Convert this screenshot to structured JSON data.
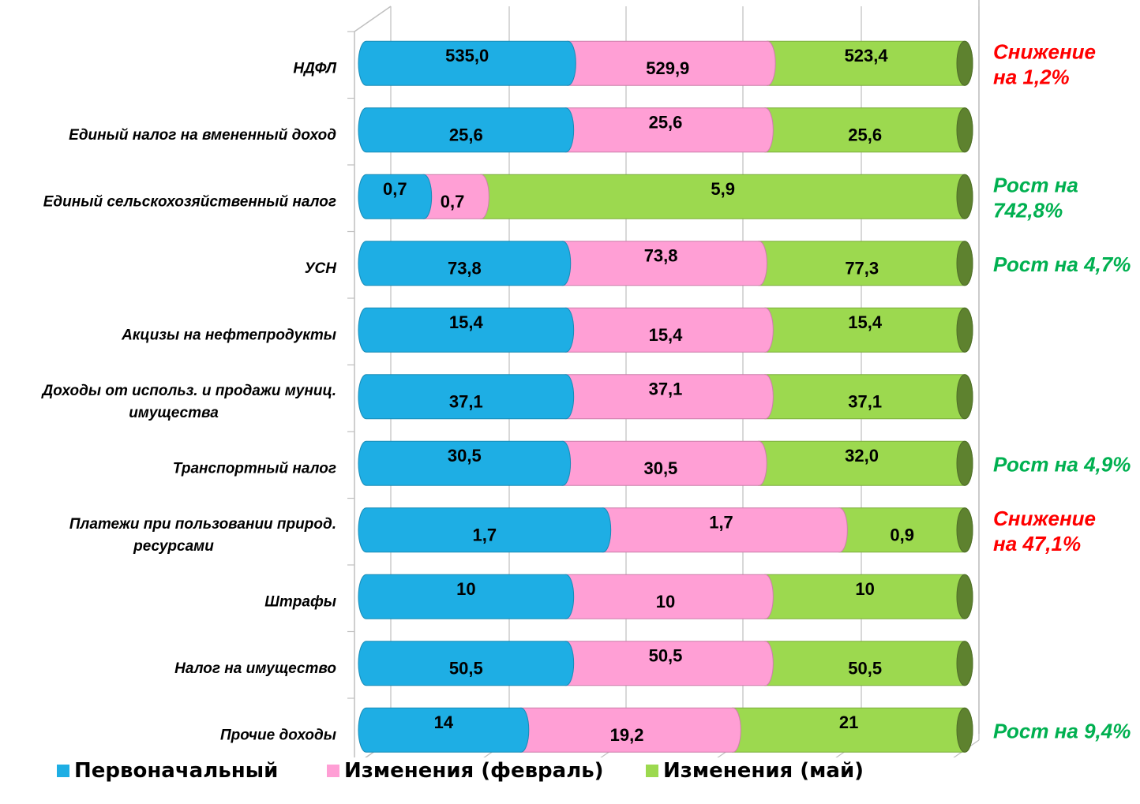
{
  "chart_data": {
    "type": "bar",
    "orientation": "horizontal-stacked-100",
    "categories": [
      "НДФЛ",
      "Единый налог на вмененный доход",
      "Единый сельскохозяйственный налог",
      "УСН",
      "Акцизы на нефтепродукты",
      "Доходы от использ. и продажи муниц. имущества",
      "Транспортный налог",
      "Платежи при пользовании природ. ресурсами",
      "Штрафы",
      "Налог на имущество",
      "Прочие доходы"
    ],
    "category_lines": [
      [
        "НДФЛ"
      ],
      [
        "Единый налог на вмененный доход"
      ],
      [
        "Единый сельскохозяйственный налог"
      ],
      [
        "УСН"
      ],
      [
        "Акцизы на нефтепродукты"
      ],
      [
        "Доходы от использ. и продажи муниц.",
        "имущества"
      ],
      [
        "Транспортный налог"
      ],
      [
        "Платежи при пользовании природ.",
        "ресурсами"
      ],
      [
        "Штрафы"
      ],
      [
        "Налог на имущество"
      ],
      [
        "Прочие доходы"
      ]
    ],
    "series": [
      {
        "name": "Первоначальный",
        "color": "#1eaee4",
        "values": [
          535.0,
          25.6,
          0.7,
          73.8,
          15.4,
          37.1,
          30.5,
          1.7,
          10,
          50.5,
          14
        ],
        "labels": [
          "535,0",
          "25,6",
          "0,7",
          "73,8",
          "15,4",
          "37,1",
          "30,5",
          "1,7",
          "10",
          "50,5",
          "14"
        ]
      },
      {
        "name": "Изменения (февраль)",
        "color": "#ff9fd5",
        "values": [
          529.9,
          25.6,
          0.7,
          73.8,
          15.4,
          37.1,
          30.5,
          1.7,
          10,
          50.5,
          19.2
        ],
        "labels": [
          "529,9",
          "25,6",
          "0,7",
          "73,8",
          "15,4",
          "37,1",
          "30,5",
          "1,7",
          "10",
          "50,5",
          "19,2"
        ]
      },
      {
        "name": "Изменения (май)",
        "color": "#9cd94f",
        "values": [
          523.4,
          25.6,
          5.9,
          77.3,
          15.4,
          37.1,
          32.0,
          0.9,
          10,
          50.5,
          21
        ],
        "labels": [
          "523,4",
          "25,6",
          "5,9",
          "77,3",
          "15,4",
          "37,1",
          "32,0",
          "0,9",
          "10",
          "50,5",
          "21"
        ]
      }
    ],
    "annotations": [
      {
        "category_index": 0,
        "lines": [
          "Снижение",
          "на 1,2%"
        ],
        "color": "#ff0000"
      },
      {
        "category_index": 2,
        "lines": [
          "Рост на",
          "742,8%"
        ],
        "color": "#00b050"
      },
      {
        "category_index": 3,
        "lines": [
          "Рост на 4,7%"
        ],
        "color": "#00b050"
      },
      {
        "category_index": 6,
        "lines": [
          "Рост на 4,9%"
        ],
        "color": "#00b050"
      },
      {
        "category_index": 7,
        "lines": [
          "Снижение",
          "на 47,1%"
        ],
        "color": "#ff0000"
      },
      {
        "category_index": 10,
        "lines": [
          "Рост на 9,4%"
        ],
        "color": "#00b050"
      }
    ],
    "grid": true,
    "legend_position": "bottom"
  }
}
